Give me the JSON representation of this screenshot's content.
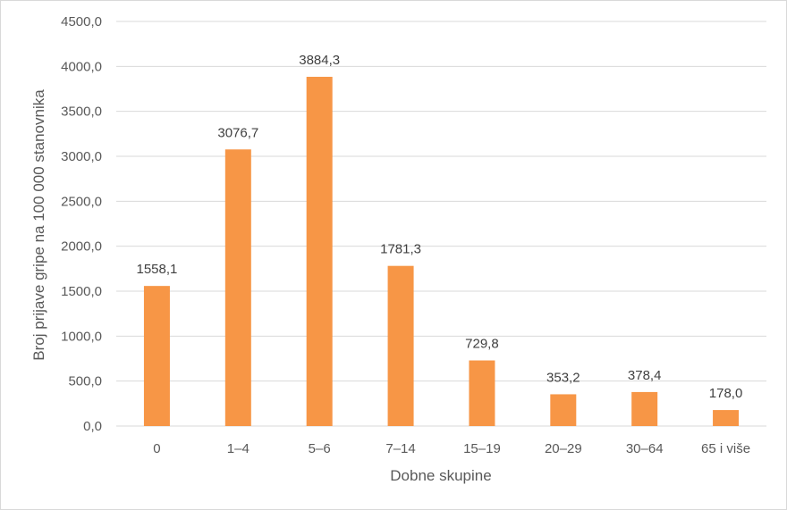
{
  "chart_data": {
    "type": "bar",
    "categories": [
      "0",
      "1–4",
      "5–6",
      "7–14",
      "15–19",
      "20–29",
      "30–64",
      "65 i više"
    ],
    "values": [
      1558.1,
      3076.7,
      3884.3,
      1781.3,
      729.8,
      353.2,
      378.4,
      178.0
    ],
    "data_labels": [
      "1558,1",
      "3076,7",
      "3884,3",
      "1781,3",
      "729,8",
      "353,2",
      "378,4",
      "178,0"
    ],
    "xlabel": "Dobne skupine",
    "ylabel": "Broj prijave gripe na 100 000 stanovnika",
    "ylim": [
      0,
      4500
    ],
    "yticks": [
      "0,0",
      "500,0",
      "1000,0",
      "1500,0",
      "2000,0",
      "2500,0",
      "3000,0",
      "3500,0",
      "4000,0",
      "4500,0"
    ],
    "grid": true,
    "legend": "none",
    "bar_color": "#F79646",
    "grid_color": "#D9D9D9"
  }
}
